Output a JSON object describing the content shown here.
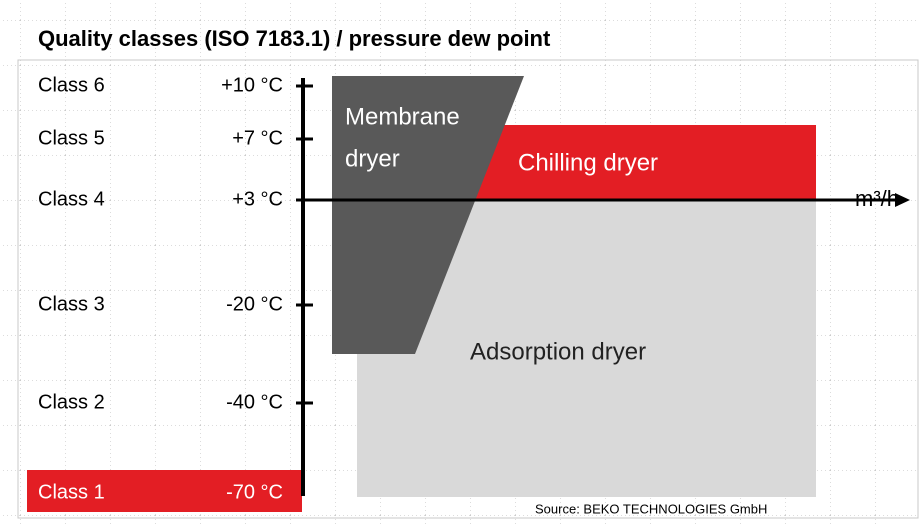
{
  "title": "Quality classes (ISO 7183.1) / pressure dew point",
  "classes": [
    {
      "label": "Class 6",
      "temperature": "+10 °C"
    },
    {
      "label": "Class 5",
      "temperature": "+7 °C"
    },
    {
      "label": "Class 4",
      "temperature": "+3 °C"
    },
    {
      "label": "Class 3",
      "temperature": "-20 °C"
    },
    {
      "label": "Class 2",
      "temperature": "-40 °C"
    },
    {
      "label": "Class 1",
      "temperature": "-70 °C"
    }
  ],
  "regions": {
    "membrane": [
      "Membrane",
      "dryer"
    ],
    "chilling": "Chilling dryer",
    "adsorption": "Adsorption dryer"
  },
  "axis_unit": "m³/h",
  "source": "Source: BEKO TECHNOLOGIES GmbH"
}
